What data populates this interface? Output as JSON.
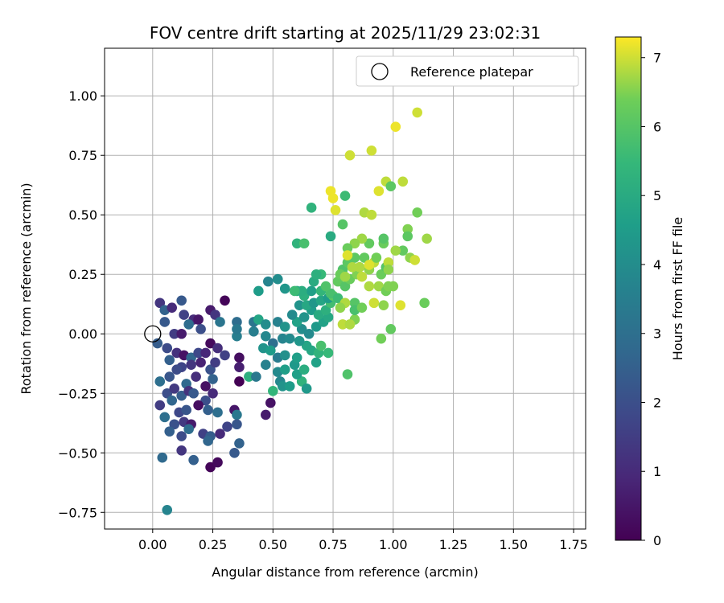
{
  "chart_data": {
    "type": "scatter",
    "title": "FOV centre drift starting at 2025/11/29 23:02:31",
    "xlabel": "Angular distance from reference (arcmin)",
    "ylabel": "Rotation from reference (arcmin)",
    "xlim": [
      -0.2,
      1.8
    ],
    "ylim": [
      -0.82,
      1.2
    ],
    "xticks": [
      0,
      0.25,
      0.5,
      0.75,
      1.0,
      1.25,
      1.5,
      1.75
    ],
    "xtick_labels": [
      "0.00",
      "0.25",
      "0.50",
      "0.75",
      "1.00",
      "1.25",
      "1.50",
      "1.75"
    ],
    "yticks": [
      -0.75,
      -0.5,
      -0.25,
      0,
      0.25,
      0.5,
      0.75,
      1.0
    ],
    "ytick_labels": [
      "−0.75",
      "−0.50",
      "−0.25",
      "0.00",
      "0.25",
      "0.50",
      "0.75",
      "1.00"
    ],
    "grid": true,
    "legend": {
      "position": "top-right",
      "entries": [
        "Reference platepar"
      ]
    },
    "reference_point": {
      "x": 0,
      "y": 0,
      "label": "Reference platepar"
    },
    "colorbar": {
      "label": "Hours from first FF file",
      "min": 0,
      "max": 7.3,
      "ticks": [
        0,
        1,
        2,
        3,
        4,
        5,
        6,
        7
      ],
      "tick_labels": [
        "0",
        "1",
        "2",
        "3",
        "4",
        "5",
        "6",
        "7"
      ],
      "colormap": "viridis"
    },
    "points": [
      [
        0.03,
        0.13,
        1.3
      ],
      [
        0.05,
        0.1,
        2.6
      ],
      [
        0.08,
        0.11,
        1.0
      ],
      [
        0.12,
        0.14,
        2.3
      ],
      [
        0.24,
        0.1,
        0.6
      ],
      [
        0.26,
        0.08,
        1.3
      ],
      [
        0.3,
        0.14,
        0.1
      ],
      [
        0.35,
        0.05,
        2.9
      ],
      [
        0.13,
        0.08,
        1.6
      ],
      [
        0.17,
        0.06,
        1.0
      ],
      [
        0.19,
        0.06,
        0.5
      ],
      [
        0.28,
        0.05,
        3.2
      ],
      [
        0.05,
        0.05,
        2.3
      ],
      [
        0.09,
        0.0,
        1.5
      ],
      [
        0.12,
        0.0,
        0.6
      ],
      [
        0.15,
        0.04,
        2.9
      ],
      [
        0.2,
        0.02,
        2.0
      ],
      [
        0.24,
        -0.04,
        0.2
      ],
      [
        0.02,
        -0.04,
        2.4
      ],
      [
        0.06,
        -0.06,
        1.9
      ],
      [
        0.1,
        -0.08,
        1.2
      ],
      [
        0.13,
        -0.09,
        0.4
      ],
      [
        0.16,
        -0.1,
        2.7
      ],
      [
        0.19,
        -0.08,
        1.8
      ],
      [
        0.22,
        -0.08,
        0.9
      ],
      [
        0.27,
        -0.06,
        1.1
      ],
      [
        0.3,
        -0.09,
        1.6
      ],
      [
        0.35,
        -0.01,
        3.5
      ],
      [
        0.35,
        0.02,
        3.3
      ],
      [
        0.36,
        -0.1,
        0.3
      ],
      [
        0.07,
        -0.11,
        2.5
      ],
      [
        0.12,
        -0.14,
        1.7
      ],
      [
        0.16,
        -0.13,
        1.3
      ],
      [
        0.2,
        -0.12,
        0.8
      ],
      [
        0.24,
        -0.15,
        2.1
      ],
      [
        0.26,
        -0.12,
        1.5
      ],
      [
        0.03,
        -0.2,
        3.0
      ],
      [
        0.07,
        -0.18,
        2.2
      ],
      [
        0.1,
        -0.15,
        1.9
      ],
      [
        0.14,
        -0.21,
        2.8
      ],
      [
        0.18,
        -0.18,
        1.1
      ],
      [
        0.22,
        -0.22,
        0.4
      ],
      [
        0.25,
        -0.19,
        2.6
      ],
      [
        0.36,
        -0.14,
        0.7
      ],
      [
        0.36,
        -0.2,
        0.0
      ],
      [
        0.06,
        -0.25,
        2.0
      ],
      [
        0.09,
        -0.23,
        1.4
      ],
      [
        0.12,
        -0.26,
        2.4
      ],
      [
        0.15,
        -0.24,
        1.2
      ],
      [
        0.17,
        -0.25,
        2.3
      ],
      [
        0.22,
        -0.28,
        2.0
      ],
      [
        0.25,
        -0.25,
        1.0
      ],
      [
        0.03,
        -0.3,
        1.5
      ],
      [
        0.08,
        -0.28,
        2.7
      ],
      [
        0.11,
        -0.33,
        1.8
      ],
      [
        0.14,
        -0.32,
        2.2
      ],
      [
        0.19,
        -0.3,
        0.3
      ],
      [
        0.23,
        -0.32,
        2.5
      ],
      [
        0.27,
        -0.33,
        3.0
      ],
      [
        0.34,
        -0.32,
        0.5
      ],
      [
        0.35,
        -0.34,
        3.3
      ],
      [
        0.05,
        -0.35,
        3.0
      ],
      [
        0.09,
        -0.38,
        2.1
      ],
      [
        0.13,
        -0.37,
        1.4
      ],
      [
        0.16,
        -0.38,
        0.6
      ],
      [
        0.21,
        -0.42,
        1.6
      ],
      [
        0.24,
        -0.43,
        2.4
      ],
      [
        0.28,
        -0.42,
        1.0
      ],
      [
        0.31,
        -0.39,
        1.7
      ],
      [
        0.35,
        -0.38,
        2.2
      ],
      [
        0.07,
        -0.41,
        2.5
      ],
      [
        0.12,
        -0.43,
        1.9
      ],
      [
        0.15,
        -0.4,
        2.9
      ],
      [
        0.23,
        -0.45,
        2.7
      ],
      [
        0.36,
        -0.46,
        2.6
      ],
      [
        0.04,
        -0.52,
        2.8
      ],
      [
        0.12,
        -0.49,
        1.3
      ],
      [
        0.17,
        -0.53,
        2.5
      ],
      [
        0.24,
        -0.56,
        0.1
      ],
      [
        0.27,
        -0.54,
        0.2
      ],
      [
        0.34,
        -0.5,
        2.3
      ],
      [
        0.06,
        -0.74,
        3.7
      ],
      [
        0.47,
        -0.34,
        0.6
      ],
      [
        0.49,
        -0.29,
        0.4
      ],
      [
        0.5,
        -0.24,
        5.4
      ],
      [
        0.48,
        0.22,
        3.7
      ],
      [
        0.52,
        0.23,
        4.0
      ],
      [
        0.44,
        0.18,
        4.5
      ],
      [
        0.55,
        0.19,
        4.3
      ],
      [
        0.42,
        0.05,
        3.2
      ],
      [
        0.44,
        0.06,
        4.8
      ],
      [
        0.47,
        0.04,
        4.0
      ],
      [
        0.52,
        0.05,
        3.6
      ],
      [
        0.55,
        0.03,
        4.2
      ],
      [
        0.42,
        0.01,
        3.5
      ],
      [
        0.47,
        -0.01,
        3.8
      ],
      [
        0.5,
        -0.04,
        3.0
      ],
      [
        0.54,
        -0.02,
        3.7
      ],
      [
        0.57,
        -0.02,
        3.9
      ],
      [
        0.46,
        -0.06,
        4.2
      ],
      [
        0.49,
        -0.07,
        4.5
      ],
      [
        0.52,
        -0.1,
        3.4
      ],
      [
        0.55,
        -0.09,
        4.1
      ],
      [
        0.47,
        -0.13,
        3.6
      ],
      [
        0.52,
        -0.16,
        3.9
      ],
      [
        0.55,
        -0.15,
        4.6
      ],
      [
        0.59,
        -0.13,
        4.4
      ],
      [
        0.4,
        -0.18,
        5.2
      ],
      [
        0.43,
        -0.18,
        3.3
      ],
      [
        0.53,
        -0.2,
        3.8
      ],
      [
        0.54,
        -0.22,
        4.2
      ],
      [
        0.57,
        -0.22,
        4.5
      ],
      [
        0.62,
        -0.2,
        5.3
      ],
      [
        0.64,
        -0.23,
        4.4
      ],
      [
        0.6,
        -0.17,
        4.6
      ],
      [
        0.63,
        -0.15,
        5.1
      ],
      [
        0.6,
        -0.1,
        4.6
      ],
      [
        0.66,
        -0.07,
        4.9
      ],
      [
        0.69,
        -0.08,
        5.3
      ],
      [
        0.73,
        -0.08,
        5.5
      ],
      [
        0.68,
        -0.12,
        4.7
      ],
      [
        0.7,
        -0.05,
        5.8
      ],
      [
        0.64,
        -0.05,
        4.8
      ],
      [
        0.61,
        -0.03,
        4.3
      ],
      [
        0.62,
        0.02,
        4.0
      ],
      [
        0.65,
        0.0,
        3.9
      ],
      [
        0.68,
        0.03,
        4.4
      ],
      [
        0.71,
        0.05,
        4.7
      ],
      [
        0.73,
        0.07,
        4.9
      ],
      [
        0.6,
        0.05,
        4.7
      ],
      [
        0.58,
        0.08,
        3.9
      ],
      [
        0.63,
        0.07,
        4.2
      ],
      [
        0.66,
        0.1,
        4.5
      ],
      [
        0.69,
        0.08,
        5.0
      ],
      [
        0.72,
        0.1,
        5.2
      ],
      [
        0.74,
        0.13,
        5.7
      ],
      [
        0.61,
        0.12,
        4.2
      ],
      [
        0.64,
        0.12,
        4.9
      ],
      [
        0.67,
        0.13,
        4.3
      ],
      [
        0.7,
        0.14,
        4.8
      ],
      [
        0.73,
        0.15,
        4.5
      ],
      [
        0.75,
        0.16,
        6.1
      ],
      [
        0.6,
        0.18,
        4.9
      ],
      [
        0.63,
        0.16,
        5.2
      ],
      [
        0.66,
        0.18,
        4.6
      ],
      [
        0.7,
        0.18,
        5.4
      ],
      [
        0.74,
        0.17,
        5.8
      ],
      [
        0.77,
        0.15,
        5.6
      ],
      [
        0.67,
        0.22,
        5.0
      ],
      [
        0.7,
        0.25,
        5.5
      ],
      [
        0.72,
        0.2,
        5.9
      ],
      [
        0.77,
        0.22,
        6.2
      ],
      [
        0.8,
        0.2,
        6.0
      ],
      [
        0.82,
        0.23,
        6.3
      ],
      [
        0.85,
        0.25,
        6.5
      ],
      [
        0.79,
        0.27,
        5.9
      ],
      [
        0.81,
        0.3,
        6.1
      ],
      [
        0.86,
        0.28,
        6.4
      ],
      [
        0.9,
        0.27,
        6.6
      ],
      [
        0.88,
        0.32,
        6.2
      ],
      [
        0.92,
        0.3,
        6.9
      ],
      [
        0.95,
        0.25,
        6.3
      ],
      [
        0.97,
        0.28,
        6.0
      ],
      [
        1.0,
        0.2,
        6.5
      ],
      [
        0.94,
        0.2,
        6.7
      ],
      [
        0.9,
        0.2,
        6.8
      ],
      [
        0.97,
        0.18,
        6.4
      ],
      [
        0.92,
        0.13,
        7.0
      ],
      [
        0.96,
        0.12,
        6.6
      ],
      [
        1.03,
        0.12,
        7.1
      ],
      [
        1.13,
        0.13,
        6.3
      ],
      [
        0.84,
        0.13,
        6.0
      ],
      [
        0.8,
        0.13,
        6.8
      ],
      [
        0.84,
        0.06,
        6.5
      ],
      [
        0.79,
        0.04,
        6.9
      ],
      [
        0.78,
        0.11,
        6.6
      ],
      [
        0.84,
        0.1,
        5.8
      ],
      [
        0.87,
        0.11,
        6.4
      ],
      [
        0.82,
        0.04,
        6.8
      ],
      [
        0.81,
        -0.17,
        5.9
      ],
      [
        0.95,
        -0.02,
        6.4
      ],
      [
        0.99,
        0.02,
        6.2
      ],
      [
        0.68,
        0.25,
        5.2
      ],
      [
        0.62,
        0.18,
        5.1
      ],
      [
        0.59,
        0.18,
        5.6
      ],
      [
        0.6,
        0.38,
        5.3
      ],
      [
        0.63,
        0.38,
        5.8
      ],
      [
        0.66,
        0.53,
        5.3
      ],
      [
        0.74,
        0.41,
        5.0
      ],
      [
        0.79,
        0.46,
        6.0
      ],
      [
        0.8,
        0.58,
        5.6
      ],
      [
        0.76,
        0.52,
        7.1
      ],
      [
        0.74,
        0.6,
        7.2
      ],
      [
        0.75,
        0.57,
        7.2
      ],
      [
        0.82,
        0.75,
        7.0
      ],
      [
        0.91,
        0.77,
        7.0
      ],
      [
        0.88,
        0.51,
        6.8
      ],
      [
        0.91,
        0.5,
        6.9
      ],
      [
        0.94,
        0.6,
        7.1
      ],
      [
        0.97,
        0.64,
        6.9
      ],
      [
        0.99,
        0.62,
        6.1
      ],
      [
        1.04,
        0.64,
        6.9
      ],
      [
        1.06,
        0.44,
        6.5
      ],
      [
        1.06,
        0.41,
        6.1
      ],
      [
        1.01,
        0.87,
        7.2
      ],
      [
        1.1,
        0.93,
        7.0
      ],
      [
        1.1,
        0.51,
        6.4
      ],
      [
        1.14,
        0.4,
        6.7
      ],
      [
        1.07,
        0.32,
        6.6
      ],
      [
        1.09,
        0.31,
        7.0
      ],
      [
        1.04,
        0.35,
        6.2
      ],
      [
        1.01,
        0.35,
        6.7
      ],
      [
        0.96,
        0.38,
        6.3
      ],
      [
        0.96,
        0.4,
        6.0
      ],
      [
        0.93,
        0.32,
        6.4
      ],
      [
        0.9,
        0.38,
        6.2
      ],
      [
        0.87,
        0.4,
        6.7
      ],
      [
        0.84,
        0.38,
        6.6
      ],
      [
        0.81,
        0.36,
        6.3
      ],
      [
        0.84,
        0.32,
        6.1
      ],
      [
        0.86,
        0.28,
        6.8
      ],
      [
        0.9,
        0.29,
        7.1
      ],
      [
        0.81,
        0.33,
        7.1
      ],
      [
        0.83,
        0.28,
        6.8
      ],
      [
        0.78,
        0.25,
        6.3
      ],
      [
        0.8,
        0.24,
        6.7
      ],
      [
        0.87,
        0.24,
        6.9
      ],
      [
        0.98,
        0.3,
        6.9
      ],
      [
        0.98,
        0.27,
        6.6
      ],
      [
        0.98,
        0.2,
        6.5
      ]
    ]
  }
}
